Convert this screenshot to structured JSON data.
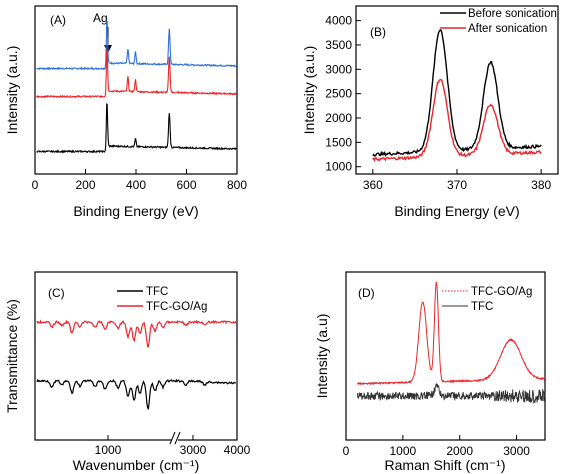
{
  "colors": {
    "black": "#000000",
    "red": "#e8262b",
    "blue": "#2f6fd6",
    "gray": "#777777"
  },
  "chart_data": [
    {
      "id": "A",
      "type": "line",
      "panel_label": "(A)",
      "xlabel": "Binding Energy (eV)",
      "ylabel": "Intensity (a.u.)",
      "xlim": [
        0,
        800
      ],
      "xticks": [
        "0",
        "200",
        "400",
        "600",
        "800"
      ],
      "annotation": "Ag",
      "annotation_x": 368,
      "series": [
        {
          "color": "blue",
          "offset": 2,
          "peaks": [
            [
              285,
              9
            ],
            [
              368,
              3
            ],
            [
              398,
              2.4
            ],
            [
              532,
              7
            ]
          ]
        },
        {
          "color": "red",
          "offset": 1,
          "peaks": [
            [
              285,
              9
            ],
            [
              368,
              3
            ],
            [
              398,
              2.4
            ],
            [
              532,
              7
            ]
          ]
        },
        {
          "color": "black",
          "offset": 0,
          "peaks": [
            [
              285,
              9
            ],
            [
              398,
              1.6
            ],
            [
              532,
              7
            ]
          ]
        }
      ]
    },
    {
      "id": "B",
      "type": "line",
      "panel_label": "(B)",
      "xlabel": "Binding Energy (eV)",
      "ylabel": "Intensity (a.u.)",
      "xlim": [
        358,
        382
      ],
      "ylim": [
        850,
        4300
      ],
      "xticks": [
        "360",
        "370",
        "380"
      ],
      "yticks": [
        "1000",
        "1500",
        "2000",
        "2500",
        "3000",
        "3500",
        "4000"
      ],
      "legend_position": "top-right",
      "series": [
        {
          "name": "Before sonication",
          "color": "black",
          "baseline": 1250,
          "peaks": [
            [
              368.0,
              3820
            ],
            [
              374.0,
              3150
            ]
          ],
          "tail": 1420
        },
        {
          "name": "After sonication",
          "color": "red",
          "baseline": 1150,
          "peaks": [
            [
              368.0,
              2800
            ],
            [
              374.0,
              2280
            ]
          ],
          "tail": 1300
        }
      ]
    },
    {
      "id": "C",
      "type": "line",
      "panel_label": "(C)",
      "xlabel": "Wavenumber (cm⁻¹)",
      "ylabel": "Transmittance (%)",
      "xticks": [
        "1000",
        "3000",
        "4000"
      ],
      "legend_position": "top-center",
      "series": [
        {
          "name": "TFC",
          "color": "black",
          "offset": 0
        },
        {
          "name": "TFC-GO/Ag",
          "color": "red",
          "offset": 1
        }
      ]
    },
    {
      "id": "D",
      "type": "line",
      "panel_label": "(D)",
      "xlabel": "Raman Shift (cm⁻¹)",
      "ylabel": "Intensity (a.u)",
      "xlim": [
        0,
        3500
      ],
      "xticks": [
        "0",
        "1000",
        "2000",
        "3000"
      ],
      "legend_position": "top-right",
      "series": [
        {
          "name": "TFC-GO/Ag",
          "color": "red",
          "peaks": [
            [
              1350,
              9
            ],
            [
              1590,
              11
            ],
            [
              2900,
              4.5
            ]
          ]
        },
        {
          "name": "TFC",
          "color": "gray",
          "peaks": [
            [
              1590,
              1.2
            ]
          ]
        }
      ]
    }
  ]
}
